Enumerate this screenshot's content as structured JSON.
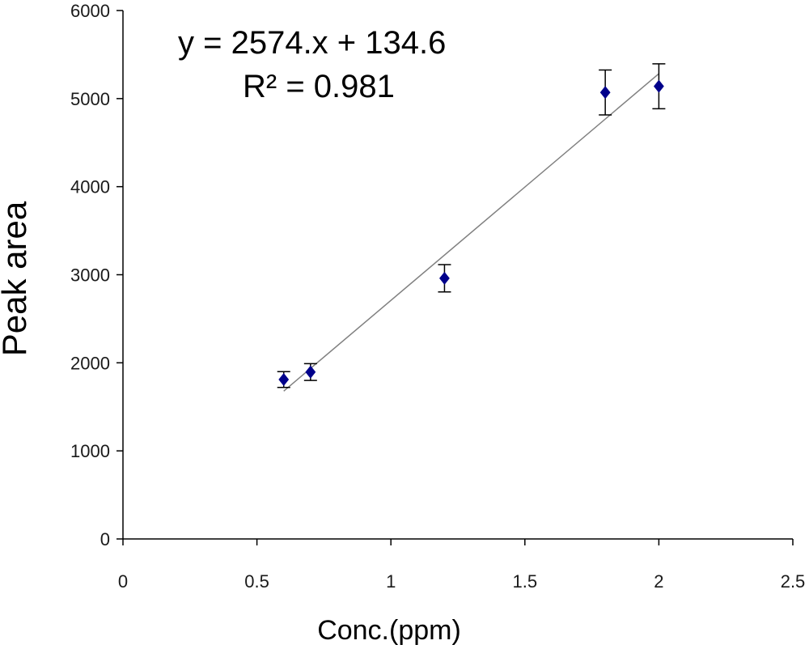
{
  "chart_data": {
    "type": "scatter",
    "title": "",
    "xlabel": "Conc.(ppm)",
    "ylabel": "Peak area",
    "xlim": [
      0,
      2.5
    ],
    "ylim": [
      0,
      6000
    ],
    "xticks": [
      0,
      0.5,
      1,
      1.5,
      2,
      2.5
    ],
    "xtick_labels": [
      "0",
      "0.5",
      "1",
      "1.5",
      "2",
      "2.5"
    ],
    "yticks": [
      0,
      1000,
      2000,
      3000,
      4000,
      5000,
      6000
    ],
    "ytick_labels": [
      "0",
      "1000",
      "2000",
      "3000",
      "4000",
      "5000",
      "6000"
    ],
    "grid": false,
    "legend": false,
    "series": [
      {
        "points": [
          {
            "x": 0.6,
            "y": 1810,
            "err": 90
          },
          {
            "x": 0.7,
            "y": 1895,
            "err": 95
          },
          {
            "x": 1.2,
            "y": 2960,
            "err": 155
          },
          {
            "x": 1.8,
            "y": 5070,
            "err": 255
          },
          {
            "x": 2.0,
            "y": 5140,
            "err": 255
          }
        ],
        "marker_color": "#00008b",
        "marker": "diamond"
      }
    ],
    "trendline": {
      "slope": 2574,
      "intercept": 134.6,
      "x_range": [
        0.6,
        2.0
      ],
      "color": "#808080"
    },
    "annotations": {
      "equation": "y = 2574.x + 134.6",
      "r_squared": "R² = 0.981"
    }
  }
}
